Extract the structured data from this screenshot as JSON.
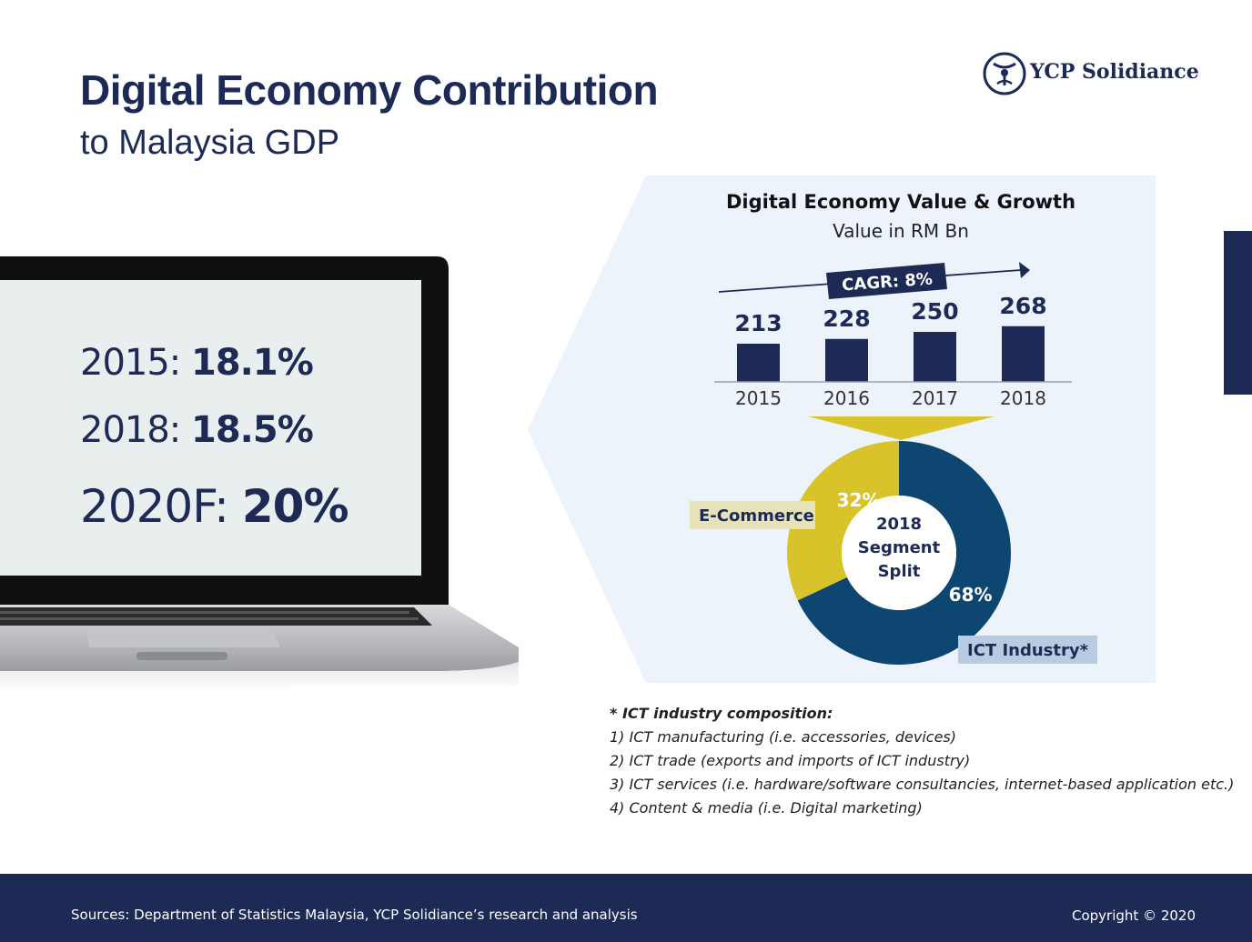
{
  "header": {
    "title": "Digital Economy Contribution",
    "subtitle": "to Malaysia GDP",
    "logo_text": "YCP Solidiance"
  },
  "screen": {
    "stats": [
      {
        "label": "2015: ",
        "value": "18.1%"
      },
      {
        "label": "2018: ",
        "value": "18.5%"
      },
      {
        "label": "2020F: ",
        "value": "20%"
      }
    ]
  },
  "colors": {
    "navy": "#1c2a55",
    "donut_blue": "#0d4670",
    "donut_yellow": "#d8c32a",
    "panel_bg": "#edf3fa"
  },
  "chart_data": [
    {
      "type": "bar",
      "title": "Digital Economy Value & Growth",
      "subtitle": "Value in RM Bn",
      "categories": [
        "2015",
        "2016",
        "2017",
        "2018"
      ],
      "values": [
        213,
        228,
        250,
        268
      ],
      "data_labels": [
        "213",
        "228",
        "250",
        "268"
      ],
      "annotation": "CAGR: 8%",
      "grid": false
    },
    {
      "type": "pie",
      "center_label": [
        "2018",
        "Segment",
        "Split"
      ],
      "slices": [
        {
          "name": "ICT Industry*",
          "value": 68,
          "label": "68%",
          "color": "#0d4670"
        },
        {
          "name": "E-Commerce",
          "value": 32,
          "label": "32%",
          "color": "#d8c32a"
        }
      ]
    }
  ],
  "notes": {
    "heading": "* ICT industry composition:",
    "items": [
      "1) ICT manufacturing (i.e. accessories, devices)",
      "2) ICT trade (exports and imports of ICT industry)",
      "3) ICT services (i.e. hardware/software consultancies, internet-based application etc.)",
      "4) Content & media (i.e. Digital marketing)"
    ]
  },
  "footer": {
    "sources": "Sources: Department of Statistics Malaysia, YCP Solidiance’s research and analysis",
    "copyright": "Copyright © 2020"
  }
}
